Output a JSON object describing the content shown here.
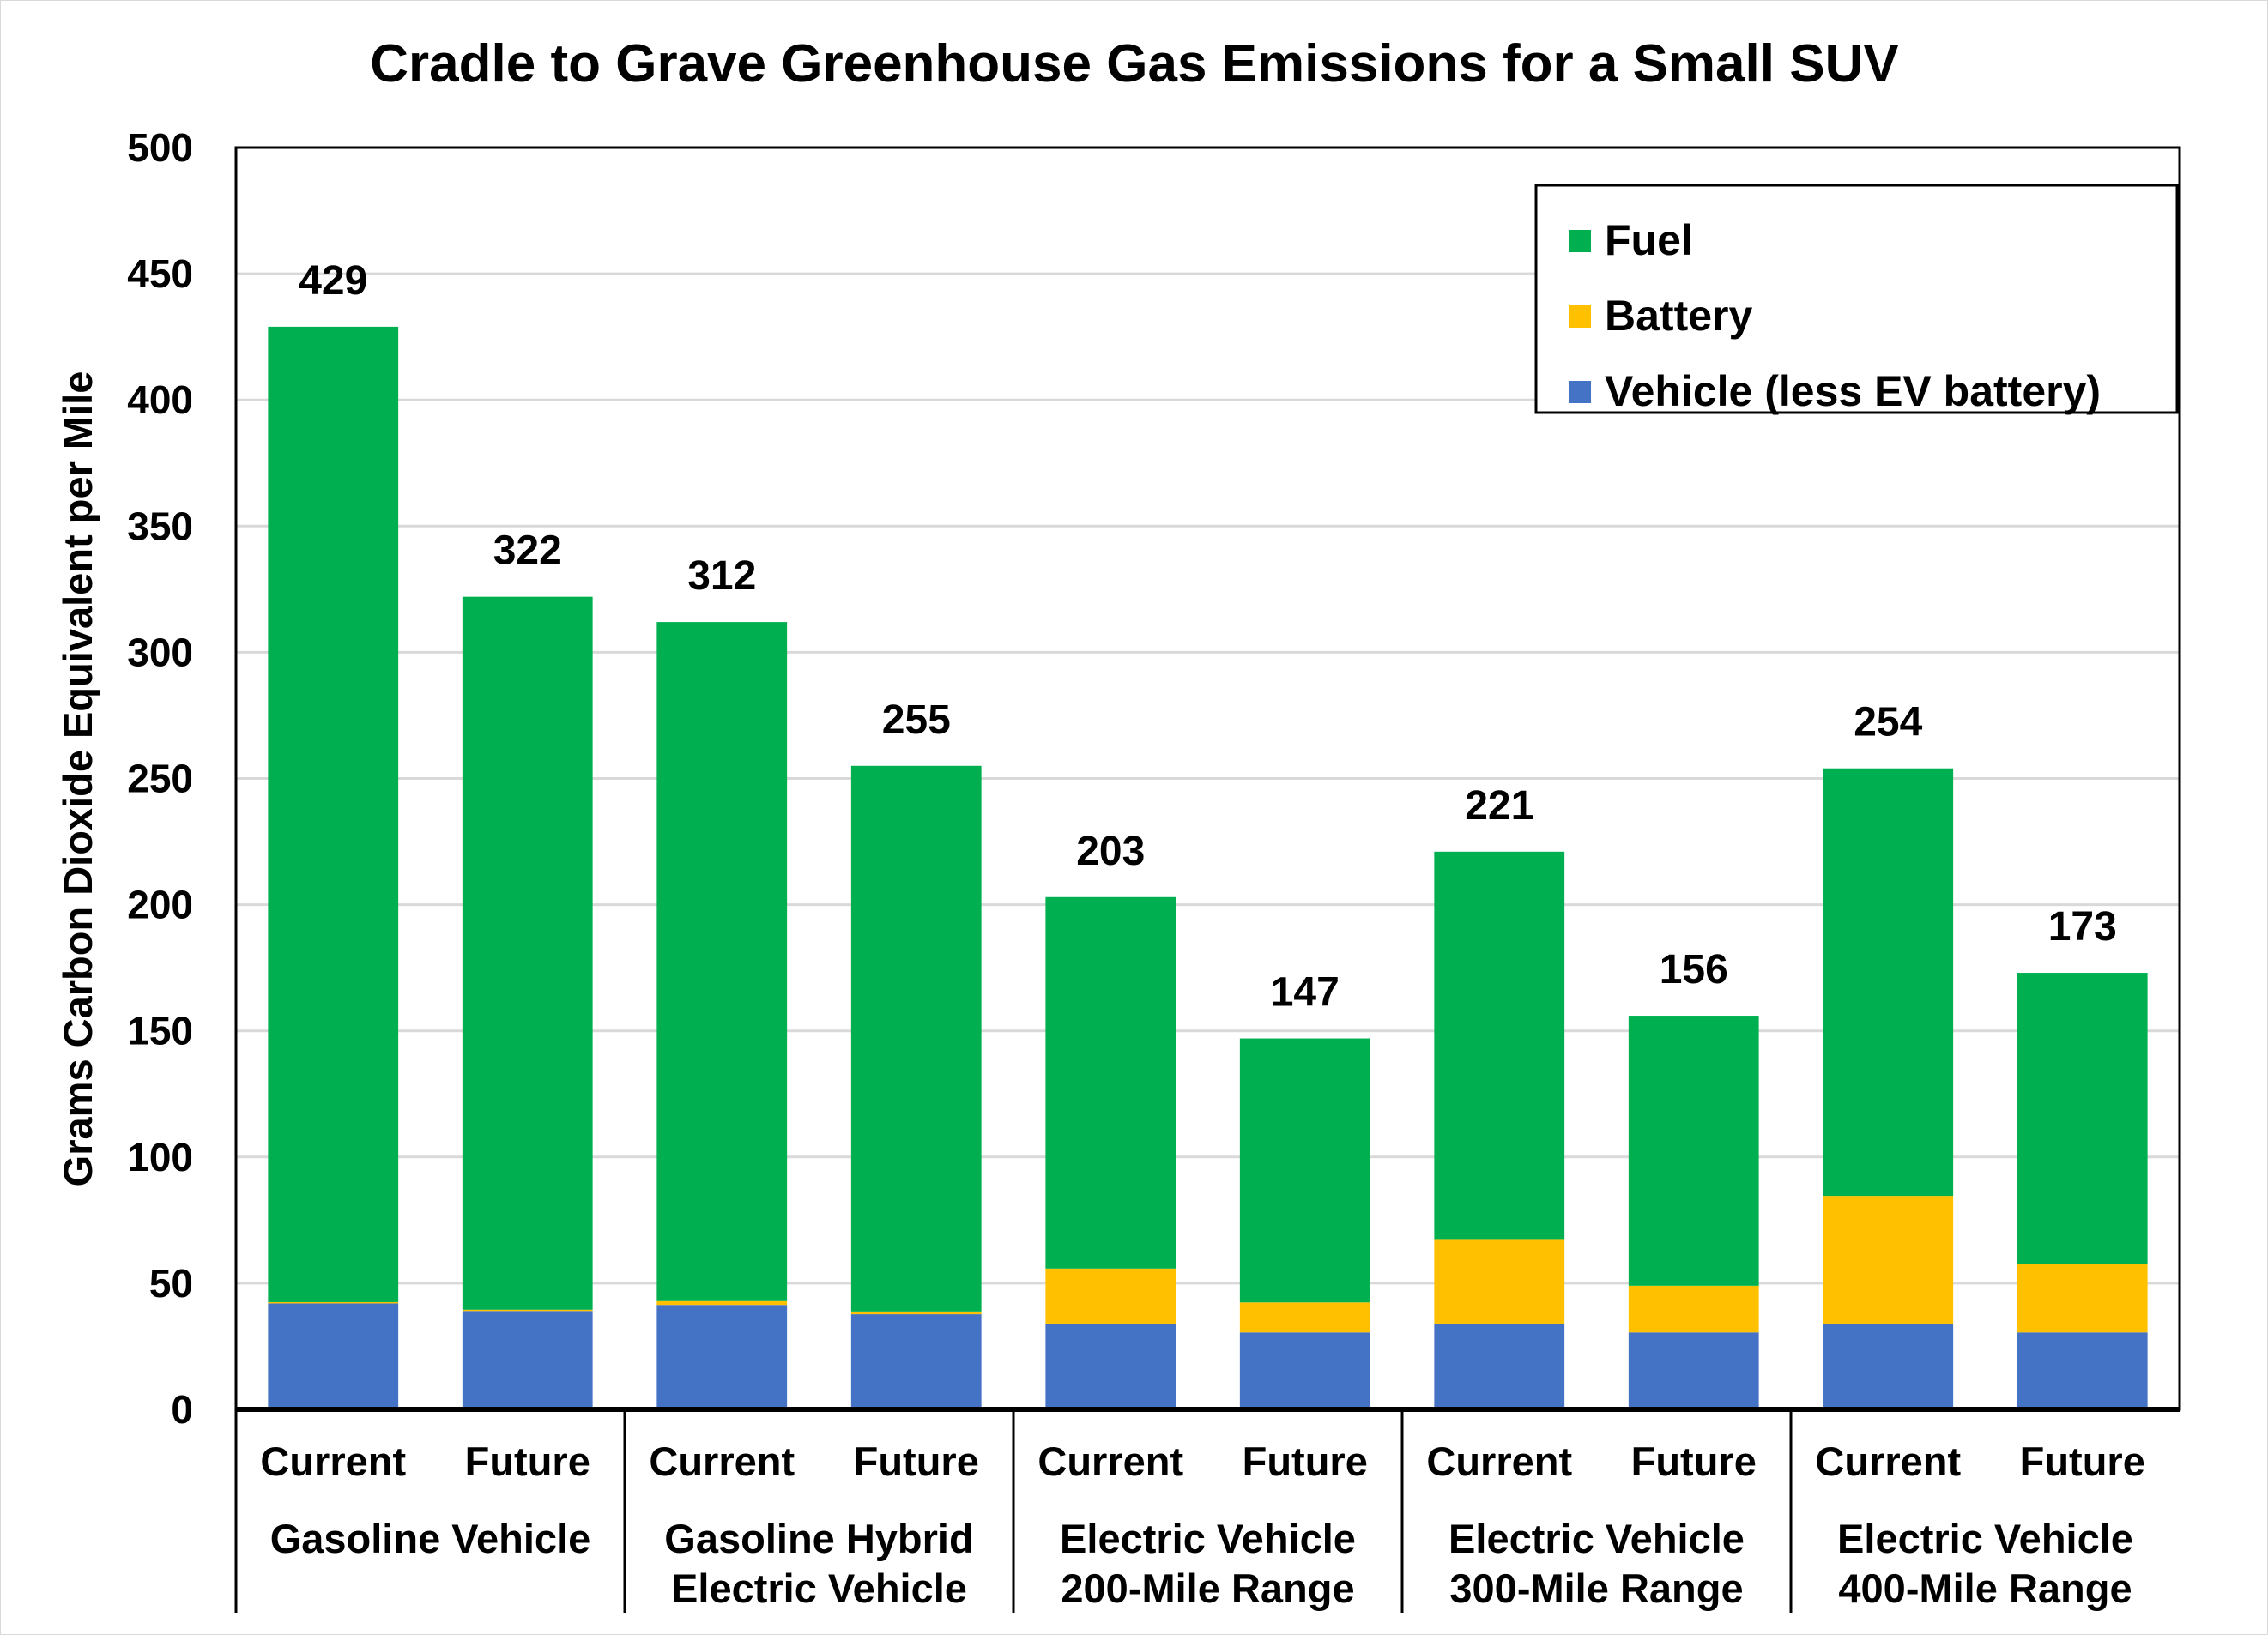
{
  "chart_data": {
    "type": "bar",
    "stacked": true,
    "title": "Cradle to Grave Greenhouse Gas Emissions for a Small SUV",
    "ylabel": "Grams Carbon Dioxide Equivalent per Mile",
    "xlabel": "",
    "ylim": [
      0,
      500
    ],
    "yticks": [
      0,
      50,
      100,
      150,
      200,
      250,
      300,
      350,
      400,
      450,
      500
    ],
    "grid": true,
    "legend_position": "top-right",
    "categories": [
      "Current",
      "Future",
      "Current",
      "Future",
      "Current",
      "Future",
      "Current",
      "Future",
      "Current",
      "Future"
    ],
    "groups": [
      {
        "label_lines": [
          "Gasoline Vehicle"
        ]
      },
      {
        "label_lines": [
          "Gasoline Hybrid",
          "Electric Vehicle"
        ]
      },
      {
        "label_lines": [
          "Electric Vehicle",
          "200-Mile Range"
        ]
      },
      {
        "label_lines": [
          "Electric Vehicle",
          "300-Mile Range"
        ]
      },
      {
        "label_lines": [
          "Electric Vehicle",
          "400-Mile Range"
        ]
      }
    ],
    "series": [
      {
        "name": "Vehicle (less EV battery)",
        "color": "#4472C4",
        "values": [
          42,
          39,
          41.4,
          37.7,
          33.9,
          30.5,
          33.9,
          30.5,
          33.9,
          30.5
        ]
      },
      {
        "name": "Battery",
        "color": "#FFC000",
        "values": [
          0.5,
          0.5,
          1.5,
          1.1,
          21.9,
          11.9,
          33.6,
          18.5,
          50.7,
          27
        ]
      },
      {
        "name": "Fuel",
        "color": "#00B050",
        "values": [
          386.5,
          282.5,
          269.1,
          216.2,
          147.2,
          104.6,
          153.5,
          107,
          169.4,
          115.5
        ]
      }
    ],
    "totals": [
      429,
      322,
      312,
      255,
      203,
      147,
      221,
      156,
      254,
      173
    ],
    "legend_order": [
      "Fuel",
      "Battery",
      "Vehicle (less EV battery)"
    ]
  }
}
